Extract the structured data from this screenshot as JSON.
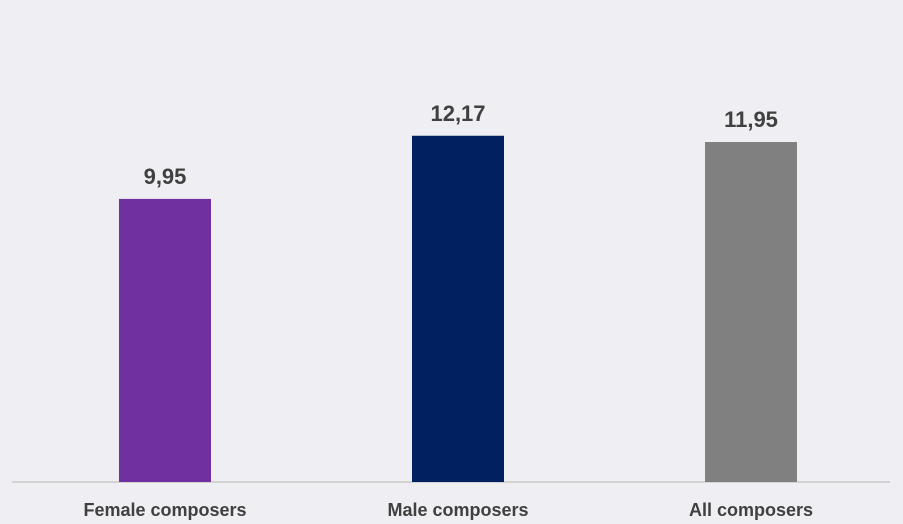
{
  "chart_data": {
    "type": "bar",
    "categories": [
      "Female composers",
      "Male composers",
      "All composers"
    ],
    "values": [
      9.95,
      12.17,
      11.95
    ],
    "value_labels": [
      "9,95",
      "12,17",
      "11,95"
    ],
    "colors": [
      "#7030a0",
      "#002060",
      "#808080"
    ],
    "title": "",
    "xlabel": "",
    "ylabel": "",
    "ylim": [
      0,
      12.5
    ],
    "grid": false,
    "legend": "none"
  }
}
